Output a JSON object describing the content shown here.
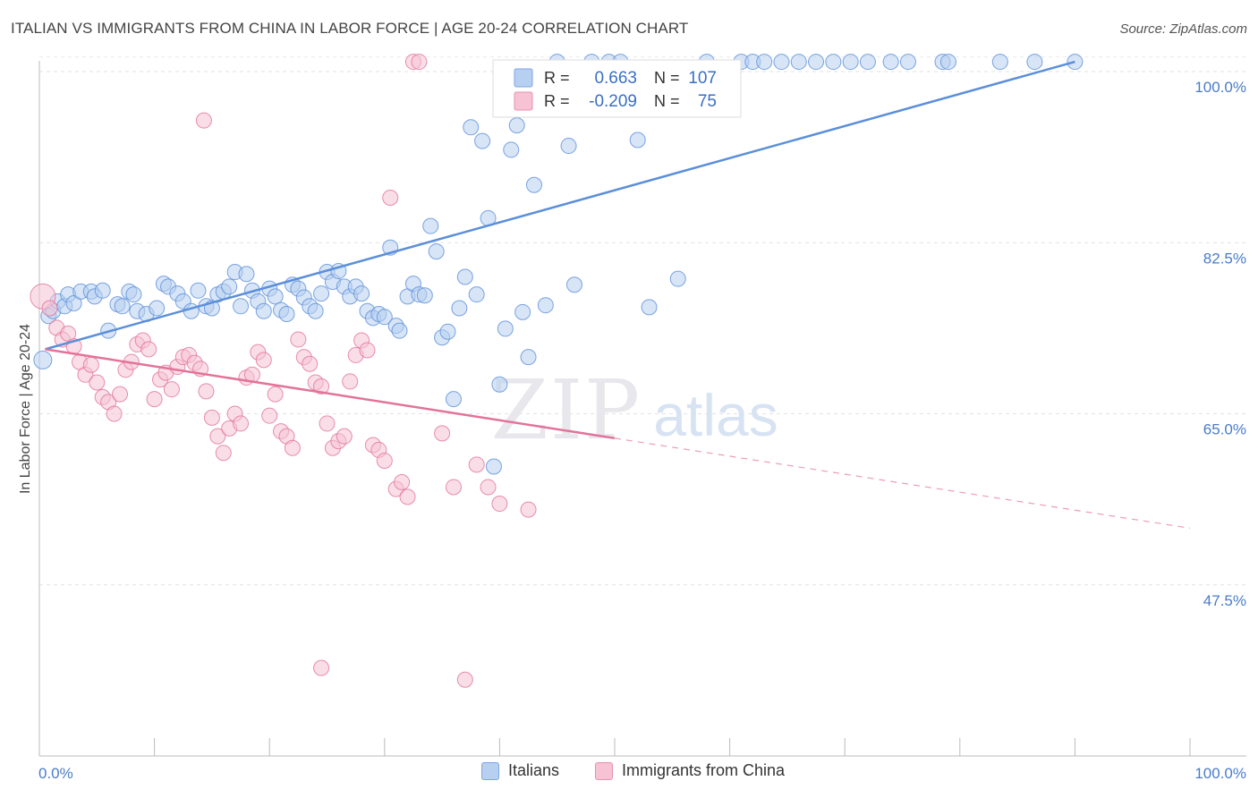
{
  "chart_data": {
    "type": "scatter",
    "title": "ITALIAN VS IMMIGRANTS FROM CHINA IN LABOR FORCE | AGE 20-24 CORRELATION CHART",
    "source": "Source: ZipAtlas.com",
    "ylabel": "In Labor Force | Age 20-24",
    "xlabel": "",
    "xlim": [
      0,
      100
    ],
    "ylim": [
      30,
      102
    ],
    "x_tick_labels": {
      "left": "0.0%",
      "right": "100.0%"
    },
    "y_ticks": [
      {
        "value": 100.0,
        "label": "100.0%"
      },
      {
        "value": 82.5,
        "label": "82.5%"
      },
      {
        "value": 65.0,
        "label": "65.0%"
      },
      {
        "value": 47.5,
        "label": "47.5%"
      }
    ],
    "watermark": {
      "zip": "ZIP",
      "atlas": "atlas"
    },
    "legend_top": [
      {
        "series": "Italians",
        "r_label": "R =",
        "r_value": "0.663",
        "n_label": "N =",
        "n_value": "107"
      },
      {
        "series": "Immigrants from China",
        "r_label": "R =",
        "r_value": "-0.209",
        "n_label": "N =",
        "n_value": "75"
      }
    ],
    "series": [
      {
        "name": "Italians",
        "color": "#5b8fd9",
        "fill": "#b7cff0",
        "trend": {
          "x": [
            0.5,
            90
          ],
          "y": [
            71.6,
            101.0
          ],
          "dashed_to": null
        },
        "points": [
          [
            0.3,
            70.5
          ],
          [
            0.8,
            75.0
          ],
          [
            1.2,
            75.5
          ],
          [
            1.6,
            76.5
          ],
          [
            2.2,
            76.0
          ],
          [
            2.5,
            77.2
          ],
          [
            3.0,
            76.3
          ],
          [
            3.6,
            77.5
          ],
          [
            4.5,
            77.5
          ],
          [
            4.8,
            77.0
          ],
          [
            5.5,
            77.6
          ],
          [
            6.0,
            73.5
          ],
          [
            6.8,
            76.2
          ],
          [
            7.2,
            76.0
          ],
          [
            7.8,
            77.5
          ],
          [
            8.2,
            77.2
          ],
          [
            8.5,
            75.5
          ],
          [
            9.3,
            75.2
          ],
          [
            10.2,
            75.8
          ],
          [
            10.8,
            78.3
          ],
          [
            11.2,
            78.0
          ],
          [
            12.0,
            77.3
          ],
          [
            12.5,
            76.5
          ],
          [
            13.2,
            75.5
          ],
          [
            13.8,
            77.6
          ],
          [
            14.5,
            76.0
          ],
          [
            15.0,
            75.8
          ],
          [
            15.5,
            77.2
          ],
          [
            16.0,
            77.5
          ],
          [
            16.5,
            78.0
          ],
          [
            17.0,
            79.5
          ],
          [
            17.5,
            76.0
          ],
          [
            18.0,
            79.3
          ],
          [
            18.5,
            77.6
          ],
          [
            19.0,
            76.5
          ],
          [
            19.5,
            75.5
          ],
          [
            20.0,
            77.8
          ],
          [
            20.5,
            77.0
          ],
          [
            21.0,
            75.6
          ],
          [
            21.5,
            75.2
          ],
          [
            22.0,
            78.2
          ],
          [
            22.5,
            77.8
          ],
          [
            23.0,
            76.9
          ],
          [
            23.5,
            76.0
          ],
          [
            24.0,
            75.5
          ],
          [
            24.5,
            77.3
          ],
          [
            25.0,
            79.5
          ],
          [
            25.5,
            78.5
          ],
          [
            26.0,
            79.6
          ],
          [
            26.5,
            78.0
          ],
          [
            27.0,
            77.0
          ],
          [
            27.5,
            78.0
          ],
          [
            28.0,
            77.3
          ],
          [
            28.5,
            75.5
          ],
          [
            29.0,
            74.8
          ],
          [
            29.5,
            75.2
          ],
          [
            30.0,
            74.9
          ],
          [
            30.5,
            82.0
          ],
          [
            31.0,
            74.0
          ],
          [
            31.3,
            73.5
          ],
          [
            32.0,
            77.0
          ],
          [
            32.5,
            78.3
          ],
          [
            33.0,
            77.2
          ],
          [
            33.5,
            77.1
          ],
          [
            34.0,
            84.2
          ],
          [
            34.5,
            81.6
          ],
          [
            35.0,
            72.8
          ],
          [
            35.5,
            73.4
          ],
          [
            36.0,
            66.5
          ],
          [
            36.5,
            75.8
          ],
          [
            37.0,
            79.0
          ],
          [
            37.5,
            94.3
          ],
          [
            38.0,
            77.2
          ],
          [
            38.5,
            92.9
          ],
          [
            39.0,
            85.0
          ],
          [
            39.5,
            59.6
          ],
          [
            40.0,
            68.0
          ],
          [
            40.5,
            73.7
          ],
          [
            41.0,
            92.0
          ],
          [
            41.5,
            94.5
          ],
          [
            42.0,
            75.4
          ],
          [
            42.5,
            70.8
          ],
          [
            43.0,
            88.4
          ],
          [
            44.0,
            76.1
          ],
          [
            45.0,
            102.0
          ],
          [
            46.0,
            92.4
          ],
          [
            46.5,
            78.2
          ],
          [
            48.0,
            102.0
          ],
          [
            49.5,
            102.0
          ],
          [
            50.5,
            102.0
          ],
          [
            52.0,
            93.0
          ],
          [
            53.0,
            75.9
          ],
          [
            55.5,
            78.8
          ],
          [
            58.0,
            102.0
          ],
          [
            61.0,
            102.0
          ],
          [
            62.0,
            102.0
          ],
          [
            63.0,
            102.0
          ],
          [
            64.5,
            102.0
          ],
          [
            66.0,
            102.0
          ],
          [
            67.5,
            102.0
          ],
          [
            69.0,
            102.0
          ],
          [
            70.5,
            102.0
          ],
          [
            72.0,
            102.0
          ],
          [
            74.0,
            102.0
          ],
          [
            75.5,
            102.0
          ],
          [
            78.5,
            102.0
          ],
          [
            79.0,
            102.0
          ],
          [
            83.5,
            102.0
          ],
          [
            86.5,
            102.0
          ],
          [
            90.0,
            102.0
          ]
        ]
      },
      {
        "name": "Immigrants from China",
        "color": "#e2739a",
        "fill": "#f6c2d4",
        "trend": {
          "x": [
            0.5,
            50
          ],
          "y": [
            71.6,
            62.5
          ],
          "dashed_to": {
            "x": 100,
            "y": 53.3
          }
        },
        "points": [
          [
            0.3,
            77.0
          ],
          [
            0.9,
            75.8
          ],
          [
            1.5,
            73.8
          ],
          [
            2.0,
            72.6
          ],
          [
            2.5,
            73.2
          ],
          [
            3.0,
            71.9
          ],
          [
            3.5,
            70.3
          ],
          [
            4.0,
            69.0
          ],
          [
            4.5,
            70.0
          ],
          [
            5.0,
            68.2
          ],
          [
            5.5,
            66.7
          ],
          [
            6.0,
            66.2
          ],
          [
            6.5,
            65.0
          ],
          [
            7.0,
            67.0
          ],
          [
            7.5,
            69.5
          ],
          [
            8.0,
            70.3
          ],
          [
            8.5,
            72.1
          ],
          [
            9.0,
            72.5
          ],
          [
            9.5,
            71.6
          ],
          [
            10.0,
            66.5
          ],
          [
            10.5,
            68.5
          ],
          [
            11.0,
            69.2
          ],
          [
            11.5,
            67.5
          ],
          [
            12.0,
            69.8
          ],
          [
            12.5,
            70.8
          ],
          [
            13.0,
            71.0
          ],
          [
            13.5,
            70.2
          ],
          [
            14.0,
            69.6
          ],
          [
            14.5,
            67.3
          ],
          [
            15.0,
            64.6
          ],
          [
            15.5,
            62.7
          ],
          [
            16.0,
            61.0
          ],
          [
            16.5,
            63.5
          ],
          [
            17.0,
            65.0
          ],
          [
            17.5,
            64.0
          ],
          [
            18.0,
            68.7
          ],
          [
            18.5,
            69.0
          ],
          [
            19.0,
            71.3
          ],
          [
            19.5,
            70.5
          ],
          [
            20.0,
            64.8
          ],
          [
            20.5,
            67.0
          ],
          [
            21.0,
            63.2
          ],
          [
            21.5,
            62.7
          ],
          [
            22.0,
            61.5
          ],
          [
            22.5,
            72.6
          ],
          [
            23.0,
            70.8
          ],
          [
            23.5,
            70.1
          ],
          [
            24.0,
            68.2
          ],
          [
            24.5,
            67.8
          ],
          [
            25.0,
            64.0
          ],
          [
            25.5,
            61.5
          ],
          [
            26.0,
            62.2
          ],
          [
            26.5,
            62.7
          ],
          [
            27.0,
            68.3
          ],
          [
            27.5,
            71.0
          ],
          [
            28.0,
            72.5
          ],
          [
            28.5,
            71.5
          ],
          [
            29.0,
            61.8
          ],
          [
            29.5,
            61.3
          ],
          [
            30.0,
            60.2
          ],
          [
            30.5,
            87.1
          ],
          [
            31.0,
            57.3
          ],
          [
            31.5,
            58.0
          ],
          [
            32.0,
            56.5
          ],
          [
            32.5,
            102.0
          ],
          [
            33.0,
            102.0
          ],
          [
            35.0,
            63.0
          ],
          [
            36.0,
            57.5
          ],
          [
            37.0,
            37.8
          ],
          [
            38.0,
            59.8
          ],
          [
            39.0,
            57.5
          ],
          [
            40.0,
            55.8
          ],
          [
            42.5,
            55.2
          ],
          [
            14.3,
            95.0
          ],
          [
            24.5,
            39.0
          ]
        ]
      }
    ]
  }
}
